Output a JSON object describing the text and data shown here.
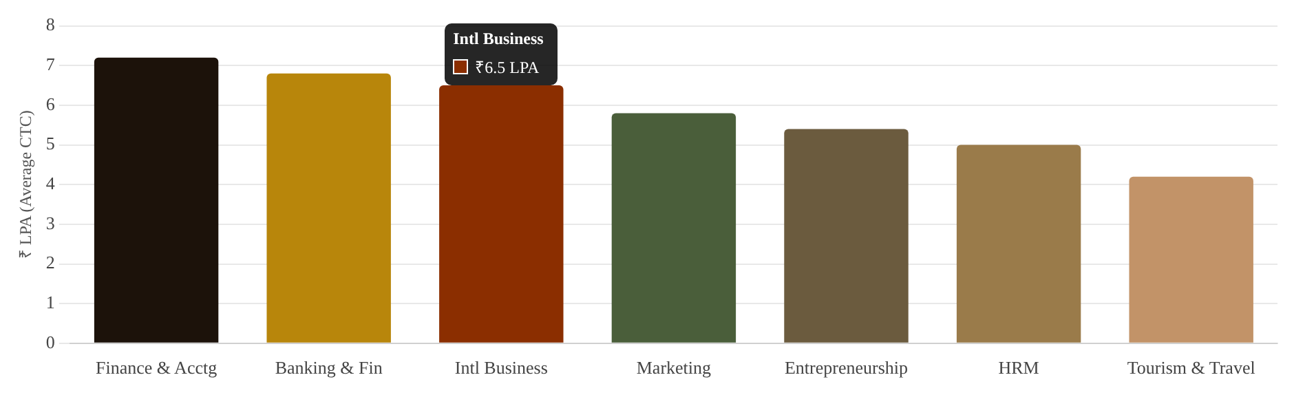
{
  "chart_data": {
    "type": "bar",
    "ylabel": "₹ LPA (Average CTC)",
    "categories": [
      "Finance & Acctg",
      "Banking & Fin",
      "Intl Business",
      "Marketing",
      "Entrepreneurship",
      "HRM",
      "Tourism & Travel"
    ],
    "values": [
      7.2,
      6.8,
      6.5,
      5.8,
      5.4,
      5.0,
      4.2
    ],
    "colors": [
      "#1c120a",
      "#b8860b",
      "#8b2e00",
      "#4a5e3a",
      "#6b5b3e",
      "#9a7b4a",
      "#c29368"
    ],
    "ylim": [
      0,
      8
    ],
    "yticks": [
      0,
      1,
      2,
      3,
      4,
      5,
      6,
      7,
      8
    ],
    "grid": "y",
    "annotations": [
      {
        "text": "Intl Business",
        "x": "Intl Business",
        "y": 6.5
      },
      {
        "text": "₹6.5 LPA",
        "x": "Intl Business",
        "y": 6.5
      }
    ]
  }
}
